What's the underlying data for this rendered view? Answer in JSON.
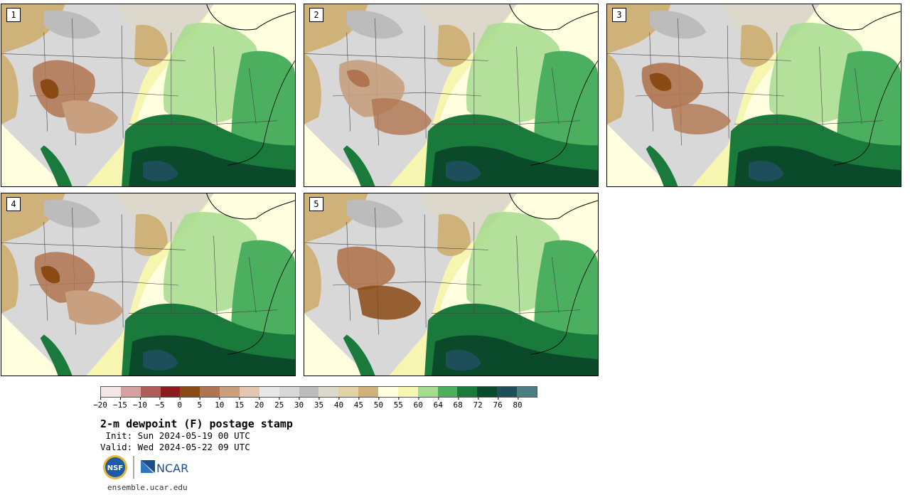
{
  "panels": [
    {
      "label": "1"
    },
    {
      "label": "2"
    },
    {
      "label": "3"
    },
    {
      "label": "4"
    },
    {
      "label": "5"
    }
  ],
  "legend": {
    "colors": [
      "#f4e6e6",
      "#d6a0a0",
      "#b05a5a",
      "#8c1b1e",
      "#8b4a14",
      "#b07550",
      "#c8a080",
      "#e2c6b4",
      "#e8e8e8",
      "#d8d8d8",
      "#bcbcbc",
      "#ddd8cc",
      "#e2d2a8",
      "#cfb27a",
      "#ffffe0",
      "#f6f6b0",
      "#a6dc8e",
      "#4caf60",
      "#1a7a3c",
      "#0a4a2a",
      "#1e4e5a",
      "#4e7c80"
    ],
    "ticks": [
      "−20",
      "−15",
      "−10",
      "−5",
      "0",
      "5",
      "10",
      "15",
      "20",
      "25",
      "30",
      "35",
      "40",
      "45",
      "50",
      "55",
      "60",
      "64",
      "68",
      "72",
      "76",
      "80"
    ]
  },
  "title": "2-m dewpoint (F) postage stamp",
  "init": " Init: Sun 2024-05-19 00 UTC",
  "valid": "Valid: Wed 2024-05-22 09 UTC",
  "logos": {
    "nsf": "NSF",
    "ncar": "NCAR"
  },
  "website": "ensemble.ucar.edu"
}
